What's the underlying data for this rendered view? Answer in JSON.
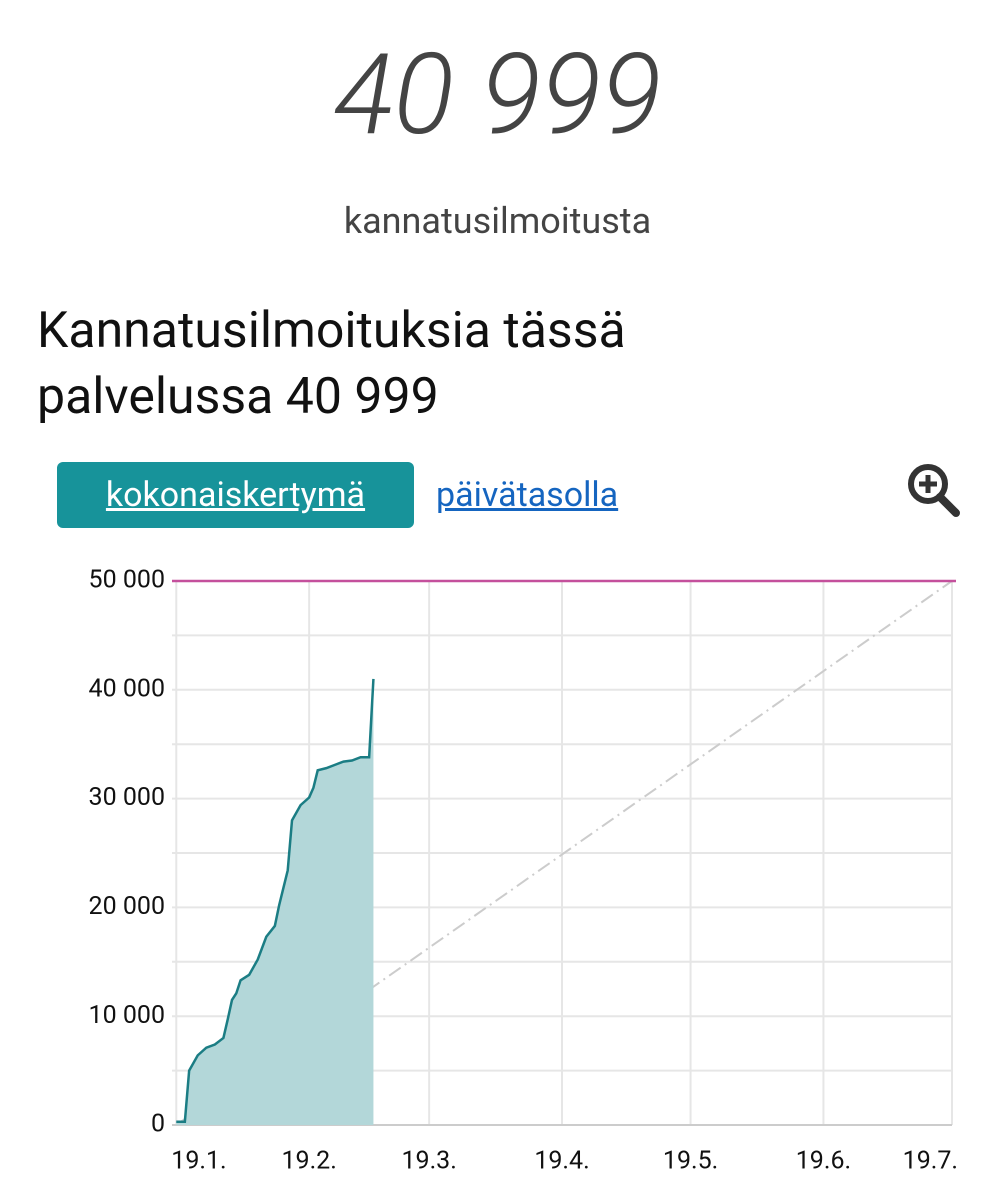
{
  "counter": {
    "value": "40 999",
    "caption": "kannatusilmoitusta"
  },
  "heading": "Kannatusilmoituksia tässä palvelussa 40 999",
  "tabs": [
    "kokonaiskertymä",
    "päivätasolla"
  ],
  "chart_data": {
    "type": "area",
    "x": [
      "19.1.",
      "21.1.",
      "22.1.",
      "24.1.",
      "26.1.",
      "28.1.",
      "30.1.",
      "31.1.",
      "1.2.",
      "2.2.",
      "3.2.",
      "5.2.",
      "7.2.",
      "9.2.",
      "11.2.",
      "12.2.",
      "14.2.",
      "15.2.",
      "17.2.",
      "19.2.",
      "20.2.",
      "21.2.",
      "23.2.",
      "25.2.",
      "27.2.",
      "1.3.",
      "3.3.",
      "5.3.",
      "6.3."
    ],
    "series": [
      {
        "color": "#1b7d84",
        "fill": "#b3d7d9",
        "values": [
          300,
          300,
          5000,
          6400,
          7100,
          7400,
          8000,
          9700,
          11500,
          12100,
          13300,
          13800,
          15200,
          17300,
          18300,
          20200,
          23400,
          28000,
          29400,
          30100,
          31000,
          32600,
          32800,
          33100,
          33400,
          33500,
          33800,
          33800,
          40999
        ]
      }
    ],
    "target_line": {
      "value": 50000,
      "color": "#c4509c"
    },
    "pace_line": {
      "x": [
        "19.1.",
        "19.7."
      ],
      "values": [
        0,
        50000
      ],
      "color": "#cccccc"
    },
    "xlim": [
      "18.1.",
      "19.7."
    ],
    "xticks": [
      "19.1.",
      "19.2.",
      "19.3.",
      "19.4.",
      "19.5.",
      "19.6.",
      "19.7."
    ],
    "ylim": [
      0,
      50000
    ],
    "yticks": [
      {
        "value": 0,
        "label": "0"
      },
      {
        "value": 10000,
        "label": "10 000"
      },
      {
        "value": 20000,
        "label": "20 000"
      },
      {
        "value": 30000,
        "label": "30 000"
      },
      {
        "value": 40000,
        "label": "40 000"
      },
      {
        "value": 50000,
        "label": "50 000"
      }
    ],
    "grid": true
  }
}
